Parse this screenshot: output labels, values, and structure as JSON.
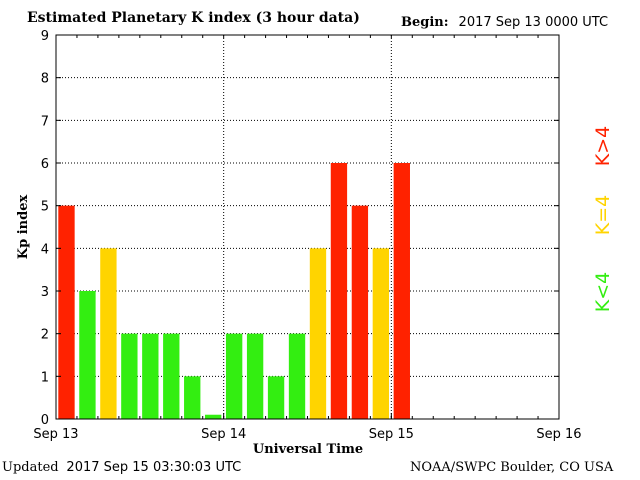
{
  "header": {
    "title": "Estimated Planetary K index (3 hour data)",
    "begin_label": "Begin:",
    "begin_value": "2017 Sep 13 0000 UTC"
  },
  "footer": {
    "updated_label": "Updated",
    "updated_value": "2017 Sep 15 03:30:03 UTC",
    "credit": "NOAA/SWPC Boulder, CO USA"
  },
  "colors": {
    "below_storm": "#33ee11",
    "at_storm": "#ffd400",
    "above_storm": "#ff2200"
  },
  "chart_data": {
    "type": "bar",
    "title": "Estimated Planetary K index (3 hour data)",
    "xlabel": "Universal Time",
    "ylabel": "Kp index",
    "ylim": [
      0,
      9
    ],
    "yticks": [
      0,
      1,
      2,
      3,
      4,
      5,
      6,
      7,
      8,
      9
    ],
    "xticks": [
      "Sep 13",
      "Sep 14",
      "Sep 15",
      "Sep 16"
    ],
    "xlim_days": [
      "2017-09-13",
      "2017-09-16"
    ],
    "interval_hours": 3,
    "grid": true,
    "values": [
      5,
      3,
      4,
      2,
      2,
      2,
      1,
      0.1,
      2,
      2,
      1,
      2,
      4,
      6,
      5,
      4,
      6
    ],
    "legend": [
      {
        "label": "K<4",
        "color": "#33ee11"
      },
      {
        "label": "K=4",
        "color": "#ffd400"
      },
      {
        "label": "K>4",
        "color": "#ff2200"
      }
    ],
    "legend_position": "right"
  }
}
